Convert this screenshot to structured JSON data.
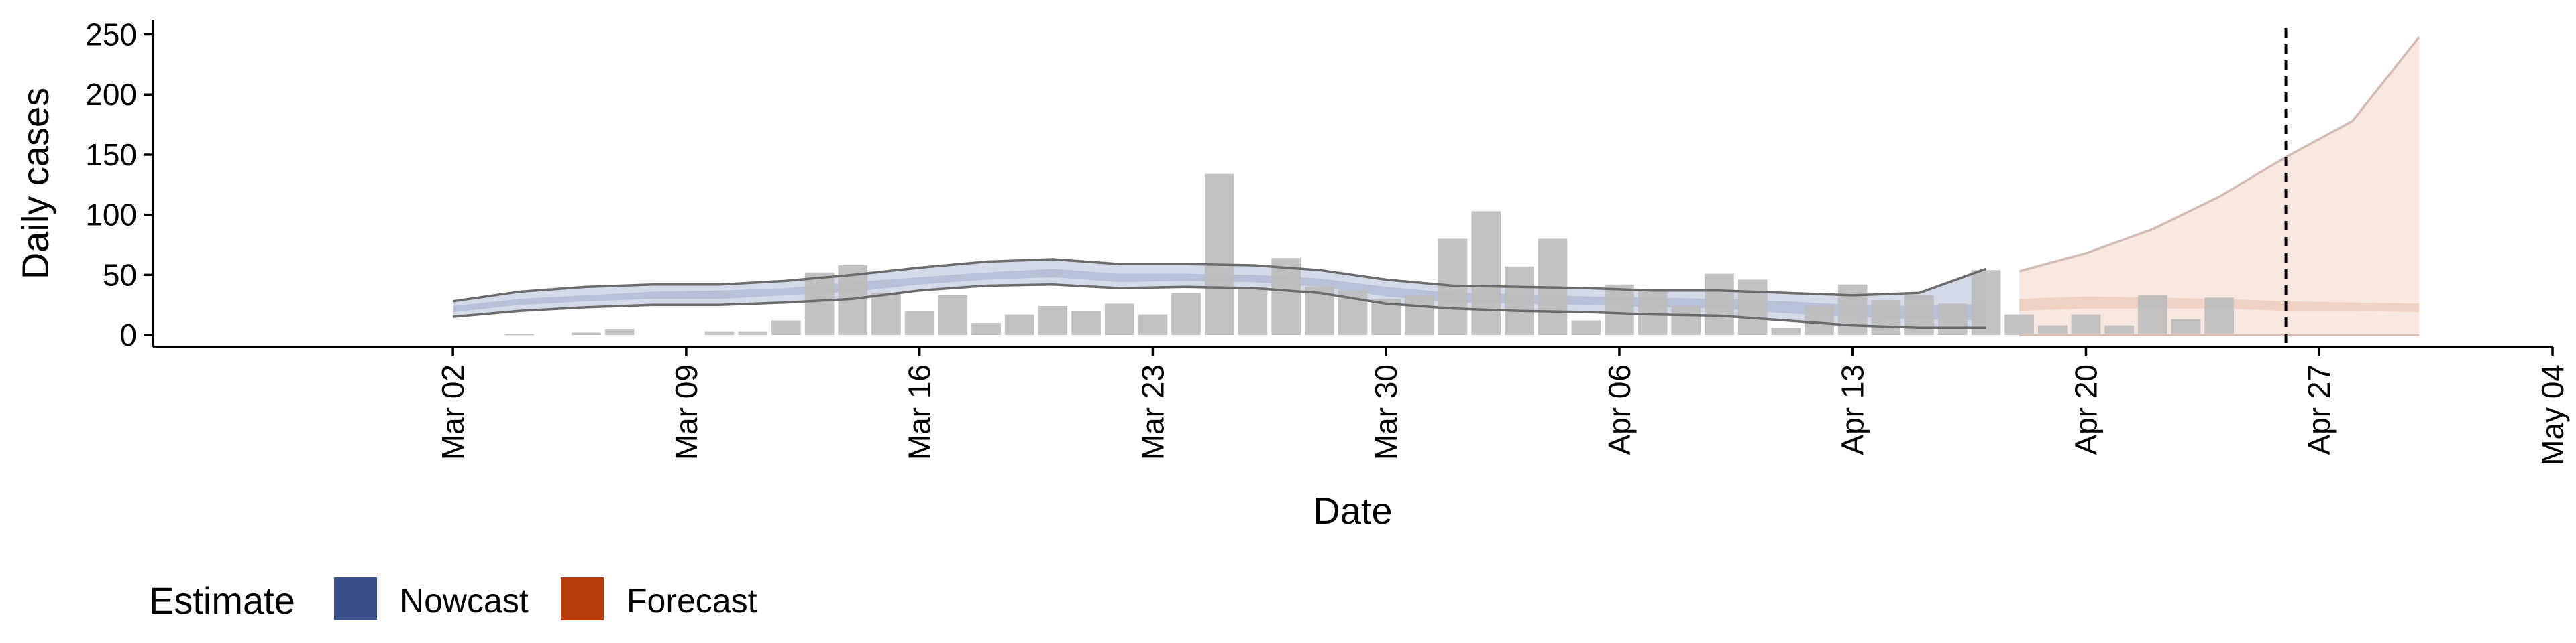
{
  "chart_data": {
    "type": "bar",
    "title": "",
    "xlabel": "Date",
    "ylabel": "Daily cases",
    "ylim": [
      -10,
      262
    ],
    "yticks": [
      0,
      50,
      100,
      150,
      200,
      250
    ],
    "xlim": [
      "2020-02-22",
      "2020-05-04"
    ],
    "xticks": [
      "2020-03-02",
      "2020-03-09",
      "2020-03-16",
      "2020-03-23",
      "2020-03-30",
      "2020-04-06",
      "2020-04-13",
      "2020-04-20",
      "2020-04-27",
      "2020-05-04"
    ],
    "xtick_labels": [
      "Mar 02",
      "Mar 09",
      "Mar 16",
      "Mar 23",
      "Mar 30",
      "Apr 06",
      "Apr 13",
      "Apr 20",
      "Apr 27",
      "May 04"
    ],
    "vline_date": "2020-04-26",
    "grid": false,
    "legend_position": "bottom-left",
    "legend": {
      "title": "Estimate",
      "items": [
        {
          "label": "Nowcast",
          "color": "#3a5088"
        },
        {
          "label": "Forecast",
          "color": "#b73c0e"
        }
      ]
    },
    "colors": {
      "bar": "#bdbdbd",
      "nowcast_band": "#c7cee0",
      "nowcast_inner": "#b0bad3",
      "nowcast_line": "#6b6b6b",
      "forecast_band": "#f7e6df",
      "forecast_inner": "#efcdbf",
      "forecast_line": "#d4bcb5"
    },
    "bars": {
      "dates": [
        "2020-03-04",
        "2020-03-06",
        "2020-03-07",
        "2020-03-10",
        "2020-03-11",
        "2020-03-12",
        "2020-03-13",
        "2020-03-14",
        "2020-03-15",
        "2020-03-16",
        "2020-03-17",
        "2020-03-18",
        "2020-03-19",
        "2020-03-20",
        "2020-03-21",
        "2020-03-22",
        "2020-03-23",
        "2020-03-24",
        "2020-03-25",
        "2020-03-26",
        "2020-03-27",
        "2020-03-28",
        "2020-03-29",
        "2020-03-30",
        "2020-03-31",
        "2020-04-01",
        "2020-04-02",
        "2020-04-03",
        "2020-04-04",
        "2020-04-05",
        "2020-04-06",
        "2020-04-07",
        "2020-04-08",
        "2020-04-09",
        "2020-04-10",
        "2020-04-11",
        "2020-04-12",
        "2020-04-13",
        "2020-04-14",
        "2020-04-15",
        "2020-04-16",
        "2020-04-17",
        "2020-04-18",
        "2020-04-19",
        "2020-04-20",
        "2020-04-21",
        "2020-04-22",
        "2020-04-23",
        "2020-04-24",
        "2020-04-25",
        "2020-04-26"
      ],
      "values": [
        1,
        2,
        5,
        3,
        3,
        12,
        52,
        58,
        35,
        20,
        33,
        10,
        17,
        24,
        20,
        26,
        17,
        35,
        134,
        40,
        64,
        40,
        37,
        30,
        33,
        80,
        103,
        57,
        80,
        12,
        42,
        37,
        24,
        51,
        46,
        6,
        24,
        42,
        29,
        33,
        26,
        54,
        17,
        8,
        17,
        8,
        33,
        13,
        31,
        0,
        0
      ]
    },
    "nowcast": {
      "dates": [
        "2020-03-02",
        "2020-03-04",
        "2020-03-06",
        "2020-03-08",
        "2020-03-10",
        "2020-03-12",
        "2020-03-14",
        "2020-03-16",
        "2020-03-18",
        "2020-03-20",
        "2020-03-22",
        "2020-03-24",
        "2020-03-26",
        "2020-03-28",
        "2020-03-30",
        "2020-04-01",
        "2020-04-03",
        "2020-04-05",
        "2020-04-07",
        "2020-04-09",
        "2020-04-11",
        "2020-04-13",
        "2020-04-15",
        "2020-04-17"
      ],
      "upper": [
        28,
        36,
        40,
        42,
        42,
        45,
        50,
        56,
        61,
        63,
        59,
        59,
        58,
        54,
        46,
        41,
        40,
        39,
        37,
        37,
        35,
        33,
        35,
        55
      ],
      "lower": [
        15,
        20,
        23,
        25,
        25,
        27,
        30,
        37,
        41,
        42,
        39,
        40,
        39,
        35,
        26,
        22,
        20,
        19,
        17,
        16,
        12,
        8,
        6,
        6
      ],
      "inner_upper": [
        24,
        30,
        33,
        36,
        37,
        39,
        44,
        48,
        52,
        55,
        51,
        51,
        50,
        47,
        40,
        35,
        34,
        32,
        31,
        30,
        28,
        25,
        24,
        26
      ],
      "inner_lower": [
        19,
        25,
        28,
        30,
        30,
        33,
        36,
        42,
        46,
        48,
        44,
        45,
        44,
        40,
        32,
        27,
        26,
        25,
        23,
        22,
        18,
        15,
        13,
        12
      ]
    },
    "forecast": {
      "dates": [
        "2020-04-18",
        "2020-04-20",
        "2020-04-22",
        "2020-04-24",
        "2020-04-26",
        "2020-04-28",
        "2020-04-30"
      ],
      "upper": [
        53,
        68,
        88,
        115,
        148,
        178,
        248
      ],
      "lower": [
        0,
        0,
        0,
        0,
        0,
        0,
        0
      ],
      "inner_upper": [
        30,
        32,
        31,
        30,
        28,
        27,
        26
      ],
      "inner_lower": [
        20,
        22,
        22,
        22,
        20,
        20,
        19
      ]
    }
  }
}
